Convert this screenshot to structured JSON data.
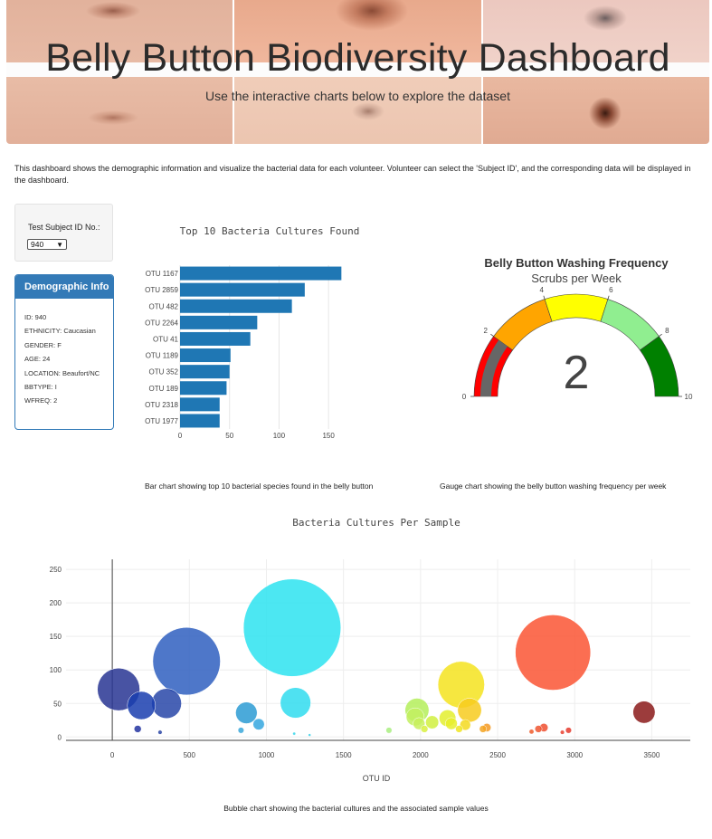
{
  "header": {
    "title": "Belly Button Biodiversity Dashboard",
    "subtitle": "Use the interactive charts below to explore the dataset"
  },
  "intro_text": "This dashboard shows the demographic information and visualize the bacterial data for each volunteer. Volunteer can select the 'Subject ID', and the corresponding data will be displayed in the dashboard.",
  "selector": {
    "label": "Test Subject ID No.:",
    "selected": "940"
  },
  "demographic": {
    "title": "Demographic Info",
    "lines": [
      "ID: 940",
      "ETHNICITY: Caucasian",
      "GENDER: F",
      "AGE: 24",
      "LOCATION: Beaufort/NC",
      "BBTYPE: I",
      "WFREQ: 2"
    ]
  },
  "captions": {
    "bar": "Bar chart showing top 10 bacterial species found in the belly button",
    "gauge": "Gauge chart showing the belly button washing frequency per week",
    "bubble": "Bubble chart showing the bacterial cultures and the associated sample values"
  },
  "colors": {
    "accent": "#337ab7",
    "bar": "#1f77b4"
  },
  "chart_data": [
    {
      "type": "bar",
      "orientation": "horizontal",
      "title": "Top 10 Bacteria Cultures Found",
      "categories": [
        "OTU 1167",
        "OTU 2859",
        "OTU 482",
        "OTU 2264",
        "OTU 41",
        "OTU 1189",
        "OTU 352",
        "OTU 189",
        "OTU 2318",
        "OTU 1977"
      ],
      "values": [
        163,
        126,
        113,
        78,
        71,
        51,
        50,
        47,
        40,
        40
      ],
      "xticks": [
        "0",
        "50",
        "100",
        "150"
      ],
      "xlim": [
        0,
        170
      ],
      "grid": true
    },
    {
      "type": "gauge",
      "title": "Belly Button Washing Frequency",
      "subtitle": "Scrubs per Week",
      "value": 2,
      "value_label": "2",
      "range": [
        0,
        10
      ],
      "ticks": [
        "0",
        "2",
        "4",
        "6",
        "8",
        "10"
      ],
      "steps": [
        {
          "range": [
            0,
            2
          ],
          "color": "#ff0000"
        },
        {
          "range": [
            2,
            4
          ],
          "color": "#ffa500"
        },
        {
          "range": [
            4,
            6
          ],
          "color": "#ffff00"
        },
        {
          "range": [
            6,
            8
          ],
          "color": "#90ee90"
        },
        {
          "range": [
            8,
            10
          ],
          "color": "#008000"
        }
      ],
      "bar_color": "#666666"
    },
    {
      "type": "scatter",
      "mode": "bubble",
      "title": "Bacteria Cultures Per Sample",
      "xlabel": "OTU ID",
      "xlim": [
        -300,
        3750
      ],
      "ylim": [
        -5,
        265
      ],
      "xticks": [
        "0",
        "500",
        "1000",
        "1500",
        "2000",
        "2500",
        "3000",
        "3500"
      ],
      "yticks": [
        "0",
        "50",
        "100",
        "150",
        "200",
        "250"
      ],
      "grid": true,
      "points": [
        {
          "x": 41,
          "y": 71,
          "c": "#283593"
        },
        {
          "x": 189,
          "y": 47,
          "c": "#1a3eaf"
        },
        {
          "x": 352,
          "y": 50,
          "c": "#2846a8"
        },
        {
          "x": 482,
          "y": 113,
          "c": "#2f5fc0"
        },
        {
          "x": 165,
          "y": 12,
          "c": "#2233a0"
        },
        {
          "x": 310,
          "y": 7,
          "c": "#2a45a5"
        },
        {
          "x": 870,
          "y": 36,
          "c": "#2b9bd3"
        },
        {
          "x": 950,
          "y": 19,
          "c": "#35a7df"
        },
        {
          "x": 835,
          "y": 10,
          "c": "#3aa8db"
        },
        {
          "x": 1167,
          "y": 163,
          "c": "#2de3f0"
        },
        {
          "x": 1189,
          "y": 51,
          "c": "#30dcef"
        },
        {
          "x": 1180,
          "y": 5,
          "c": "#33d6ea"
        },
        {
          "x": 1280,
          "y": 3,
          "c": "#36d0e8"
        },
        {
          "x": 1795,
          "y": 10,
          "c": "#a9ef80"
        },
        {
          "x": 1977,
          "y": 40,
          "c": "#b4ee5a"
        },
        {
          "x": 1965,
          "y": 30,
          "c": "#c2f060"
        },
        {
          "x": 1990,
          "y": 20,
          "c": "#c8f05c"
        },
        {
          "x": 2075,
          "y": 22,
          "c": "#d0f040"
        },
        {
          "x": 2025,
          "y": 12,
          "c": "#d8f040"
        },
        {
          "x": 2175,
          "y": 28,
          "c": "#e3ef2e"
        },
        {
          "x": 2200,
          "y": 20,
          "c": "#e8ee2c"
        },
        {
          "x": 2264,
          "y": 78,
          "c": "#f5e31e"
        },
        {
          "x": 2250,
          "y": 12,
          "c": "#f0e520"
        },
        {
          "x": 2290,
          "y": 18,
          "c": "#f3d920"
        },
        {
          "x": 2318,
          "y": 40,
          "c": "#f7cb1f"
        },
        {
          "x": 2405,
          "y": 12,
          "c": "#f5a623"
        },
        {
          "x": 2430,
          "y": 14,
          "c": "#f59a25"
        },
        {
          "x": 2720,
          "y": 8,
          "c": "#ef5a2a"
        },
        {
          "x": 2765,
          "y": 12,
          "c": "#ef5530"
        },
        {
          "x": 2800,
          "y": 14,
          "c": "#ee4f2f"
        },
        {
          "x": 2859,
          "y": 126,
          "c": "#fa5534"
        },
        {
          "x": 2920,
          "y": 7,
          "c": "#e9402e"
        },
        {
          "x": 2960,
          "y": 10,
          "c": "#e53a2d"
        },
        {
          "x": 3450,
          "y": 37,
          "c": "#8b1a1a"
        }
      ]
    }
  ]
}
